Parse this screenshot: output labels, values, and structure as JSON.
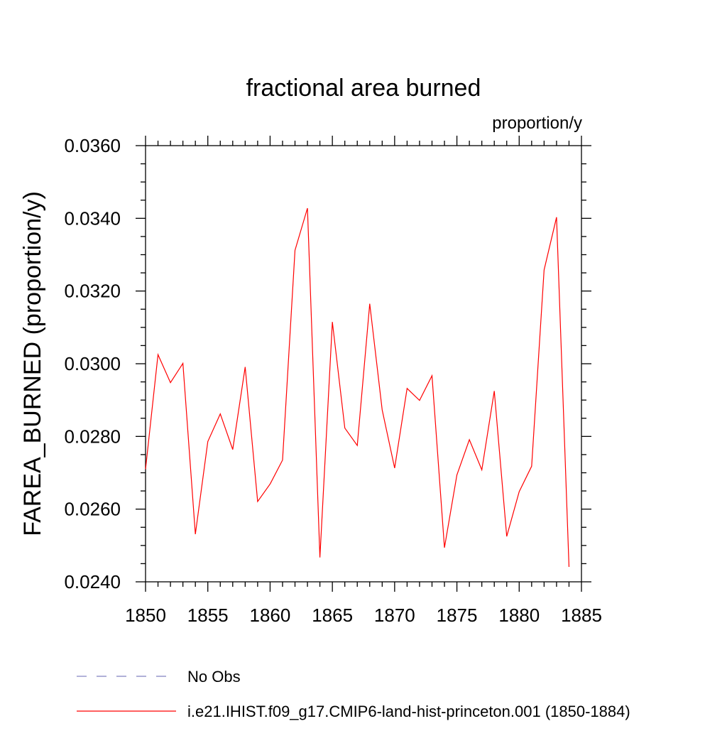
{
  "chart_data": {
    "type": "line",
    "title": "fractional area burned",
    "units": "proportion/y",
    "xlabel": "",
    "ylabel": "FAREA_BURNED  (proportion/y)",
    "xlim": [
      1850,
      1885
    ],
    "ylim": [
      0.024,
      0.036
    ],
    "x_ticks": [
      1850,
      1855,
      1860,
      1865,
      1870,
      1875,
      1880,
      1885
    ],
    "x_tick_labels": [
      "1850",
      "1855",
      "1860",
      "1865",
      "1870",
      "1875",
      "1880",
      "1885"
    ],
    "y_ticks": [
      0.024,
      0.026,
      0.028,
      0.03,
      0.032,
      0.034,
      0.036
    ],
    "y_tick_labels": [
      "0.0240",
      "0.0260",
      "0.0280",
      "0.0300",
      "0.0320",
      "0.0340",
      "0.0360"
    ],
    "grid": false,
    "legend_position": "bottom",
    "x": [
      1850,
      1851,
      1852,
      1853,
      1854,
      1855,
      1856,
      1857,
      1858,
      1859,
      1860,
      1861,
      1862,
      1863,
      1864,
      1865,
      1866,
      1867,
      1868,
      1869,
      1870,
      1871,
      1872,
      1873,
      1874,
      1875,
      1876,
      1877,
      1878,
      1879,
      1880,
      1881,
      1882,
      1883,
      1884
    ],
    "series": [
      {
        "name": "i.e21.IHIST.f09_g17.CMIP6-land-hist-princeton.001 (1850-1884)",
        "color": "#ff0000",
        "dash": "solid",
        "values": [
          0.0271,
          0.03025,
          0.02948,
          0.03001,
          0.02531,
          0.02786,
          0.02862,
          0.02764,
          0.02991,
          0.02621,
          0.02669,
          0.02735,
          0.03312,
          0.03428,
          0.02467,
          0.03115,
          0.02823,
          0.02775,
          0.03165,
          0.02873,
          0.02713,
          0.02932,
          0.02899,
          0.02967,
          0.02494,
          0.02694,
          0.02791,
          0.02708,
          0.02925,
          0.02525,
          0.02648,
          0.02718,
          0.03258,
          0.03403,
          0.02441
        ]
      }
    ],
    "legend": [
      {
        "label": "No Obs",
        "color": "#8080c0",
        "dash": "dashed"
      },
      {
        "label": "i.e21.IHIST.f09_g17.CMIP6-land-hist-princeton.001 (1850-1884)",
        "color": "#ff0000",
        "dash": "solid"
      }
    ]
  }
}
